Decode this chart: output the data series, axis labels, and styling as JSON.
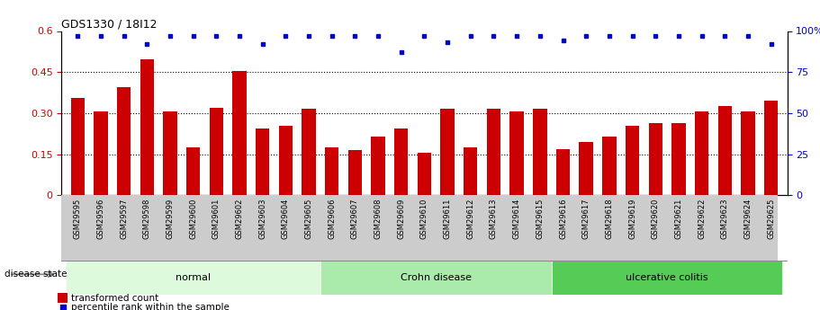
{
  "title": "GDS1330 / 18I12",
  "samples": [
    "GSM29595",
    "GSM29596",
    "GSM29597",
    "GSM29598",
    "GSM29599",
    "GSM29600",
    "GSM29601",
    "GSM29602",
    "GSM29603",
    "GSM29604",
    "GSM29605",
    "GSM29606",
    "GSM29607",
    "GSM29608",
    "GSM29609",
    "GSM29610",
    "GSM29611",
    "GSM29612",
    "GSM29613",
    "GSM29614",
    "GSM29615",
    "GSM29616",
    "GSM29617",
    "GSM29618",
    "GSM29619",
    "GSM29620",
    "GSM29621",
    "GSM29622",
    "GSM29623",
    "GSM29624",
    "GSM29625"
  ],
  "bar_values": [
    0.355,
    0.305,
    0.395,
    0.495,
    0.305,
    0.175,
    0.32,
    0.455,
    0.245,
    0.255,
    0.315,
    0.175,
    0.165,
    0.215,
    0.245,
    0.155,
    0.315,
    0.175,
    0.315,
    0.305,
    0.315,
    0.17,
    0.195,
    0.215,
    0.255,
    0.265,
    0.265,
    0.305,
    0.325,
    0.305,
    0.345
  ],
  "percentile_values": [
    97,
    97,
    97,
    92,
    97,
    97,
    97,
    97,
    92,
    97,
    97,
    97,
    97,
    97,
    87,
    97,
    93,
    97,
    97,
    97,
    97,
    94,
    97,
    97,
    97,
    97,
    97,
    97,
    97,
    97,
    92
  ],
  "groups": [
    {
      "label": "normal",
      "start": 0,
      "end": 10,
      "color": "#ddfadd"
    },
    {
      "label": "Crohn disease",
      "start": 11,
      "end": 20,
      "color": "#aaeaaa"
    },
    {
      "label": "ulcerative colitis",
      "start": 21,
      "end": 30,
      "color": "#55cc55"
    }
  ],
  "bar_color": "#cc0000",
  "percentile_color": "#0000cc",
  "ylim_left": [
    0,
    0.6
  ],
  "ylim_right": [
    0,
    100
  ],
  "yticks_left": [
    0,
    0.15,
    0.3,
    0.45,
    0.6
  ],
  "yticks_left_labels": [
    "0",
    "0.15",
    "0.30",
    "0.45",
    "0.6"
  ],
  "yticks_right": [
    0,
    25,
    50,
    75,
    100
  ],
  "yticks_right_labels": [
    "0",
    "25",
    "50",
    "75",
    "100%"
  ],
  "hline_values": [
    0.15,
    0.3,
    0.45
  ],
  "disease_state_label": "disease state",
  "legend_bar_label": "transformed count",
  "legend_pct_label": "percentile rank within the sample",
  "bg_color": "#ffffff",
  "plot_bg_color": "#ffffff",
  "tick_bg_color": "#cccccc",
  "sep_color": "#888888"
}
